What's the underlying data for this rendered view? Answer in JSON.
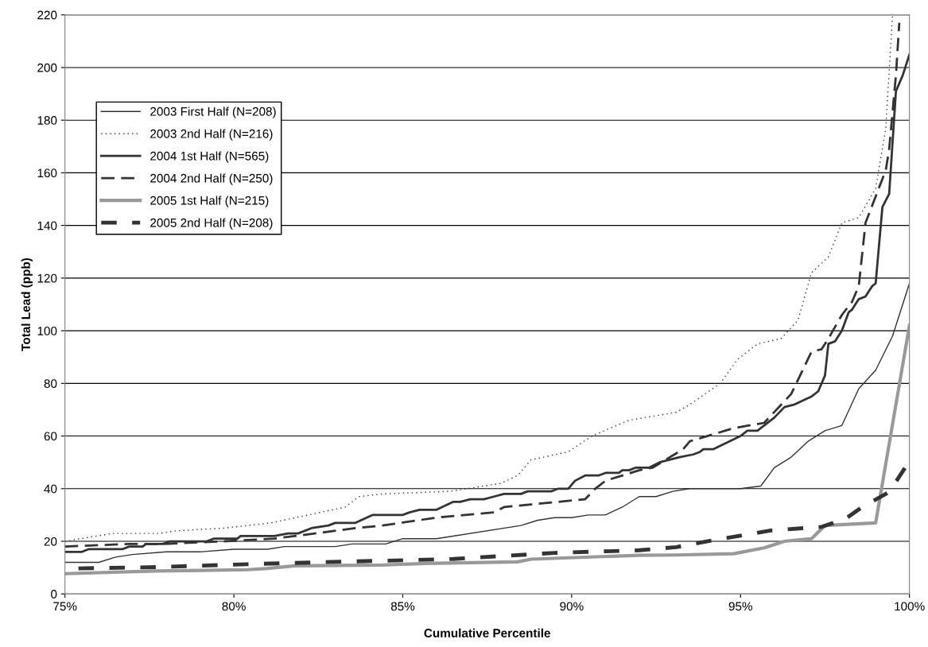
{
  "chart_data": {
    "type": "line",
    "xlabel": "Cumulative Percentile",
    "ylabel": "Total Lead (ppb)",
    "xlim": [
      75,
      100
    ],
    "xticks": [
      {
        "value": 75,
        "label": "75%"
      },
      {
        "value": 80,
        "label": "80%"
      },
      {
        "value": 85,
        "label": "85%"
      },
      {
        "value": 90,
        "label": "90%"
      },
      {
        "value": 95,
        "label": "95%"
      },
      {
        "value": 100,
        "label": "100%"
      }
    ],
    "ylim": [
      0,
      220
    ],
    "yticks": [
      0,
      20,
      40,
      60,
      80,
      100,
      120,
      140,
      160,
      180,
      200,
      220
    ],
    "grid": "y",
    "legend": "top left",
    "marker": "none",
    "series": [
      {
        "name": "2003 First Half (N=208)",
        "color": "#333333",
        "line_style": "solid",
        "x": [
          75,
          76,
          76.5,
          77,
          78,
          79,
          80,
          81,
          81.5,
          83,
          83.5,
          84.5,
          85,
          86,
          88.5,
          89,
          89.5,
          90,
          90.5,
          91,
          91.5,
          92,
          92.5,
          93,
          93.5,
          95,
          95.6,
          96,
          96.5,
          97,
          97.5,
          98,
          98.5,
          99,
          99.5,
          100
        ],
        "values": [
          12,
          12,
          14,
          15,
          16,
          16,
          17,
          17,
          18,
          18,
          19,
          19,
          21,
          21,
          26,
          28,
          29,
          29,
          30,
          30,
          33,
          37,
          37,
          39,
          40,
          40,
          41,
          48,
          52,
          58,
          62,
          64,
          78,
          85,
          98,
          118
        ]
      },
      {
        "name": "2003 2nd Half (N=216)",
        "color": "#333333",
        "line_style": "dotted",
        "x": [
          75,
          76.4,
          77.8,
          78.3,
          79.7,
          81.1,
          83.3,
          83.7,
          84.4,
          86.4,
          87.9,
          88.4,
          88.8,
          89.9,
          90.6,
          91.7,
          93.1,
          93.5,
          94.4,
          94.9,
          95.5,
          96.2,
          96.7,
          97.1,
          97.6,
          98,
          98.5,
          99,
          99.3,
          99.5
        ],
        "values": [
          20,
          23,
          23,
          24,
          25,
          27,
          33,
          37,
          38,
          39,
          42,
          45,
          51,
          54,
          60,
          66,
          69,
          72,
          80,
          89,
          95,
          97,
          104,
          122,
          128,
          141,
          143,
          154,
          177,
          220
        ]
      },
      {
        "name": "2004 1st Half (N=565)",
        "color": "#333333",
        "line_style": "solid",
        "x": [
          75,
          75.5,
          75.7,
          76.7,
          76.9,
          77.3,
          77.4,
          77.9,
          78.1,
          79.2,
          79.4,
          80.1,
          80.2,
          81.2,
          81.6,
          81.9,
          82.3,
          82.8,
          83,
          83.6,
          84.1,
          85,
          85.2,
          85.5,
          86,
          86.5,
          86.7,
          87,
          87.4,
          87.7,
          88,
          88.5,
          88.7,
          89.4,
          89.6,
          89.9,
          90.1,
          90.4,
          90.8,
          91,
          91.4,
          91.5,
          91.7,
          91.9,
          92.3,
          92.6,
          92.9,
          93.2,
          93.6,
          93.8,
          93.9,
          94.2,
          95,
          95.2,
          95.5,
          96,
          96.3,
          96.6,
          97.1,
          97.3,
          97.5,
          97.6,
          97.8,
          98,
          98.2,
          98.3,
          98.5,
          98.7,
          98.9,
          99,
          99.2,
          99.4,
          99.6,
          99.8,
          100
        ],
        "values": [
          16,
          16,
          17,
          17,
          18,
          18,
          19,
          19,
          20,
          20,
          21,
          21,
          22,
          22,
          23,
          23,
          25,
          26,
          27,
          27,
          30,
          30,
          31,
          32,
          32,
          35,
          35,
          36,
          36,
          37,
          38,
          38,
          39,
          39,
          40,
          40,
          43,
          45,
          45,
          46,
          46,
          47,
          47,
          48,
          48,
          50,
          51,
          52,
          53,
          54,
          55,
          55,
          60,
          62,
          62,
          67,
          71,
          72,
          75,
          77,
          83,
          95,
          96,
          100,
          107,
          108,
          112,
          113,
          117,
          118,
          147,
          152,
          191,
          197,
          205
        ]
      },
      {
        "name": "2004 2nd Half (N=250)",
        "color": "#333333",
        "line_style": "dashed",
        "x": [
          75,
          76.9,
          77.9,
          79.7,
          81.2,
          82.4,
          83.6,
          84.4,
          86,
          87.7,
          88,
          88.8,
          90.4,
          90.7,
          91,
          92,
          92.4,
          93.3,
          93.5,
          94.8,
          95.7,
          96.5,
          97.1,
          97.4,
          97.6,
          98,
          98.3,
          98.5,
          98.7,
          99,
          99.3,
          99.4,
          99.6,
          99.7
        ],
        "values": [
          18,
          19,
          19,
          20,
          21,
          23,
          25,
          26,
          29,
          31,
          33,
          34,
          36,
          40,
          43,
          47,
          48,
          55,
          58,
          63,
          65,
          76,
          92,
          93,
          97,
          106,
          111,
          117,
          141,
          151,
          161,
          169,
          197,
          217
        ]
      },
      {
        "name": "2005 1st Half (N=215)",
        "color": "#999999",
        "line_style": "solid",
        "x": [
          75,
          77.7,
          80.4,
          81,
          81.8,
          84.4,
          85.7,
          88.4,
          88.8,
          92,
          93.1,
          94.8,
          95.7,
          96.3,
          97.1,
          97.5,
          99,
          100
        ],
        "values": [
          7.7,
          8.7,
          9.2,
          9.7,
          10.7,
          11,
          11.6,
          12.2,
          13.2,
          14.7,
          14.8,
          15.3,
          17.5,
          20,
          21,
          26,
          27,
          102
        ]
      },
      {
        "name": "2005 2nd Half (N=208)",
        "color": "#333333",
        "line_style": "dashed",
        "x": [
          75.4,
          77.7,
          80.4,
          83.3,
          84.4,
          86.5,
          89.5,
          92,
          93.1,
          94.2,
          95.9,
          97.4,
          98.1,
          98.6,
          99.4,
          100
        ],
        "values": [
          9.7,
          10.2,
          11.3,
          12.3,
          12.6,
          13.3,
          15.6,
          16.6,
          17.8,
          20.4,
          24.1,
          25.5,
          28.5,
          33,
          38.7,
          50.5
        ]
      }
    ]
  }
}
